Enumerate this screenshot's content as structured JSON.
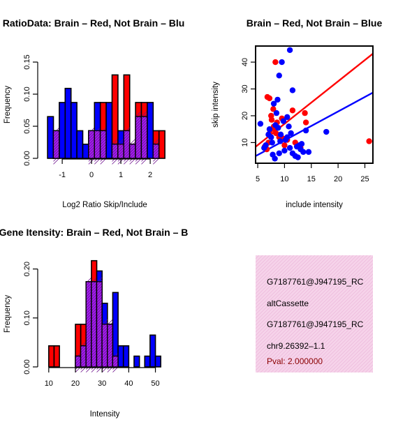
{
  "colors": {
    "red": "#ff0000",
    "blue": "#0000ff",
    "purple": "#a020f0",
    "pink": "#f6d3ea",
    "pval": "#8b0000"
  },
  "chart_data": [
    {
      "type": "histogram",
      "title": "RatioData: Brain – Red, Not Brain – Blu",
      "xlabel": "Log2 Ratio Skip/Include",
      "ylabel": "Frequency",
      "xlim": [
        -1.55,
        2.45
      ],
      "ylim": [
        0,
        0.175
      ],
      "xticks": [
        -1,
        0,
        1,
        2
      ],
      "yticks": [
        0.0,
        0.05,
        0.1,
        0.15
      ],
      "ytick_labels": [
        "0.00",
        "0.05",
        "0.10",
        "0.15"
      ],
      "bin_start": -1.5,
      "bin_width": 0.2,
      "series": [
        {
          "name": "Brain",
          "color": "red",
          "values": [
            0,
            0.043,
            0,
            0,
            0,
            0,
            0,
            0.043,
            0.043,
            0.087,
            0,
            0.13,
            0.022,
            0.13,
            0.022,
            0.087,
            0.087,
            0,
            0.043,
            0.043
          ]
        },
        {
          "name": "Not Brain",
          "color": "blue",
          "values": [
            0.065,
            0.043,
            0.087,
            0.109,
            0.087,
            0.043,
            0.022,
            0.043,
            0.087,
            0.043,
            0.087,
            0.022,
            0.043,
            0.043,
            0.022,
            0.065,
            0.065,
            0.087,
            0.022,
            0
          ]
        }
      ]
    },
    {
      "type": "scatter",
      "title": "Brain – Red, Not Brain – Blue",
      "xlabel": "include intensity",
      "ylabel": "skip intensity",
      "xlim": [
        4.6,
        26.5
      ],
      "ylim": [
        2.3,
        46
      ],
      "xticks": [
        5,
        10,
        15,
        20,
        25
      ],
      "yticks": [
        10,
        20,
        30,
        40
      ],
      "series": [
        {
          "name": "Brain",
          "color": "red",
          "x": [
            6.3,
            6.8,
            7.0,
            7.3,
            7.5,
            7.9,
            8.0,
            8.3,
            8.6,
            9.0,
            9.5,
            10.0,
            10.5,
            11.5,
            12.0,
            13.0,
            13.8,
            14.0,
            7.2,
            6.7,
            8.4,
            25.8,
            9.7,
            7.6,
            8.1
          ],
          "y": [
            8.5,
            27.0,
            10.0,
            14.5,
            20.0,
            22.5,
            16.0,
            40.0,
            17.5,
            12.0,
            19.0,
            9.0,
            11.0,
            22.0,
            10.0,
            8.0,
            21.0,
            17.5,
            26.5,
            7.5,
            13.5,
            10.5,
            11.5,
            18.5,
            15.0
          ]
        },
        {
          "name": "Not Brain",
          "color": "blue",
          "x": [
            5.5,
            6.2,
            6.5,
            7.0,
            7.2,
            7.5,
            7.8,
            8.0,
            8.2,
            8.5,
            8.7,
            9.0,
            9.2,
            9.5,
            9.8,
            10.0,
            10.2,
            10.5,
            10.8,
            11.0,
            11.2,
            11.5,
            12.0,
            12.3,
            12.8,
            13.0,
            13.5,
            14.0,
            14.5,
            17.8,
            11.0,
            9.0,
            7.7,
            12.5,
            8.3,
            10.5,
            9.3,
            13.2,
            8.8,
            11.5
          ],
          "y": [
            17.0,
            8.0,
            9.0,
            13.0,
            15.0,
            12.0,
            5.5,
            24.5,
            4.0,
            21.0,
            26.0,
            35.0,
            10.5,
            40.0,
            18.0,
            7.0,
            11.0,
            12.0,
            16.0,
            44.5,
            13.5,
            29.5,
            5.0,
            8.5,
            9.0,
            7.5,
            6.5,
            14.5,
            6.5,
            14.0,
            8.0,
            6.0,
            10.0,
            4.5,
            16.5,
            19.5,
            13.0,
            9.5,
            15.5,
            6.0
          ]
        }
      ],
      "regression": [
        {
          "color": "red",
          "intercept": 1.14,
          "slope": 1.585
        },
        {
          "color": "blue",
          "intercept": 0.0,
          "slope": 1.08
        }
      ]
    },
    {
      "type": "histogram",
      "title": "Gene Itensity: Brain – Red, Not Brain – B",
      "xlabel": "Intensity",
      "ylabel": "Frequency",
      "xlim": [
        9,
        53
      ],
      "ylim": [
        0,
        0.228
      ],
      "xticks": [
        10,
        20,
        30,
        40,
        50
      ],
      "yticks": [
        0.0,
        0.1,
        0.2
      ],
      "ytick_labels": [
        "0.00",
        "0.10",
        "0.20"
      ],
      "bin_start": 10,
      "bin_width": 2,
      "series": [
        {
          "name": "Brain",
          "color": "red",
          "values": [
            0.043,
            0.043,
            0,
            0,
            0,
            0.087,
            0.087,
            0.174,
            0.217,
            0.174,
            0.087,
            0.087,
            0.022,
            0,
            0,
            0,
            0,
            0,
            0,
            0,
            0
          ]
        },
        {
          "name": "Not Brain",
          "color": "blue",
          "values": [
            0,
            0,
            0,
            0,
            0,
            0.022,
            0.043,
            0.174,
            0.174,
            0.196,
            0.13,
            0.087,
            0.152,
            0.043,
            0.043,
            0,
            0.022,
            0,
            0.022,
            0.065,
            0.022
          ]
        }
      ]
    }
  ],
  "info_box": {
    "line1": "G7187761@J947195_RC",
    "line2": "altCassette",
    "line3": "G7187761@J947195_RC",
    "line4": "chr9.26392–1.1",
    "pval": "Pval: 2.000000"
  }
}
